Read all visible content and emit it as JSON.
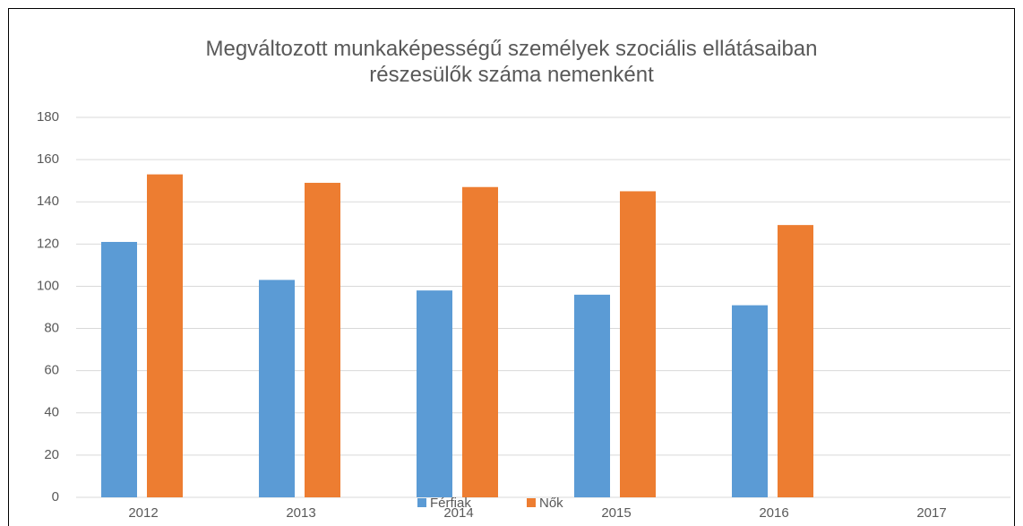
{
  "chart_data": {
    "type": "bar",
    "title": "Megváltozott munkaképességű személyek szociális ellátásaiban részesülők száma nemenként",
    "categories": [
      "2012",
      "2013",
      "2014",
      "2015",
      "2016",
      "2017"
    ],
    "series": [
      {
        "name": "Férfiak",
        "color": "#5b9bd5",
        "values": [
          121,
          103,
          98,
          96,
          91,
          null
        ]
      },
      {
        "name": "Nők",
        "color": "#ed7d31",
        "values": [
          153,
          149,
          147,
          145,
          129,
          null
        ]
      }
    ],
    "ylim": [
      0,
      180
    ],
    "yticks": [
      0,
      20,
      40,
      60,
      80,
      100,
      120,
      140,
      160,
      180
    ],
    "grid": true,
    "legend": "bottom"
  }
}
